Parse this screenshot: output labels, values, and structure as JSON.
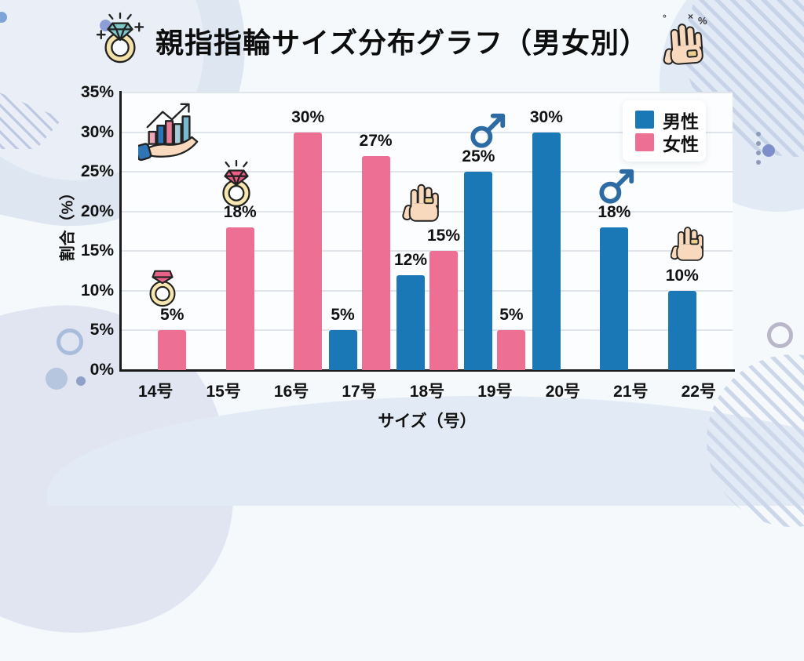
{
  "header": {
    "title": "親指指輪サイズ分布グラフ（男女別）",
    "hand_marks": [
      "°",
      "×",
      "%"
    ]
  },
  "colors": {
    "male": "#1a78b7",
    "female": "#ee6f94",
    "axis": "#1a1a1a",
    "grid": "#dfe5eb",
    "legend_bg": "#ffffff"
  },
  "legend": {
    "male_label": "男性",
    "female_label": "女性",
    "position": "top-right"
  },
  "axes": {
    "y_title": "割合（%）",
    "x_title": "サイズ（号）"
  },
  "chart_data": {
    "type": "bar",
    "title": "親指指輪サイズ分布グラフ（男女別）",
    "categories": [
      "14号",
      "15号",
      "16号",
      "17号",
      "18号",
      "19号",
      "20号",
      "21号",
      "22号"
    ],
    "series": [
      {
        "name": "男性",
        "color": "#1a78b7",
        "values": [
          null,
          null,
          null,
          5,
          12,
          25,
          30,
          18,
          10
        ]
      },
      {
        "name": "女性",
        "color": "#ee6f94",
        "values": [
          5,
          18,
          30,
          27,
          15,
          5,
          null,
          null,
          null
        ]
      }
    ],
    "xlabel": "サイズ（号）",
    "ylabel": "割合（%）",
    "ylim": [
      0,
      35
    ],
    "ytick_step": 5,
    "value_suffix": "%",
    "grid": true,
    "legend_position": "top-right"
  },
  "icons": {
    "title_left": "diamond-ring-icon",
    "title_right": "hand-with-ring-icon",
    "in_plot": [
      "hand-holding-chart-icon",
      "ring-icon",
      "ring-icon",
      "hand-with-ring-icon",
      "male-symbol-icon",
      "male-symbol-icon",
      "hand-with-ring-icon"
    ]
  }
}
